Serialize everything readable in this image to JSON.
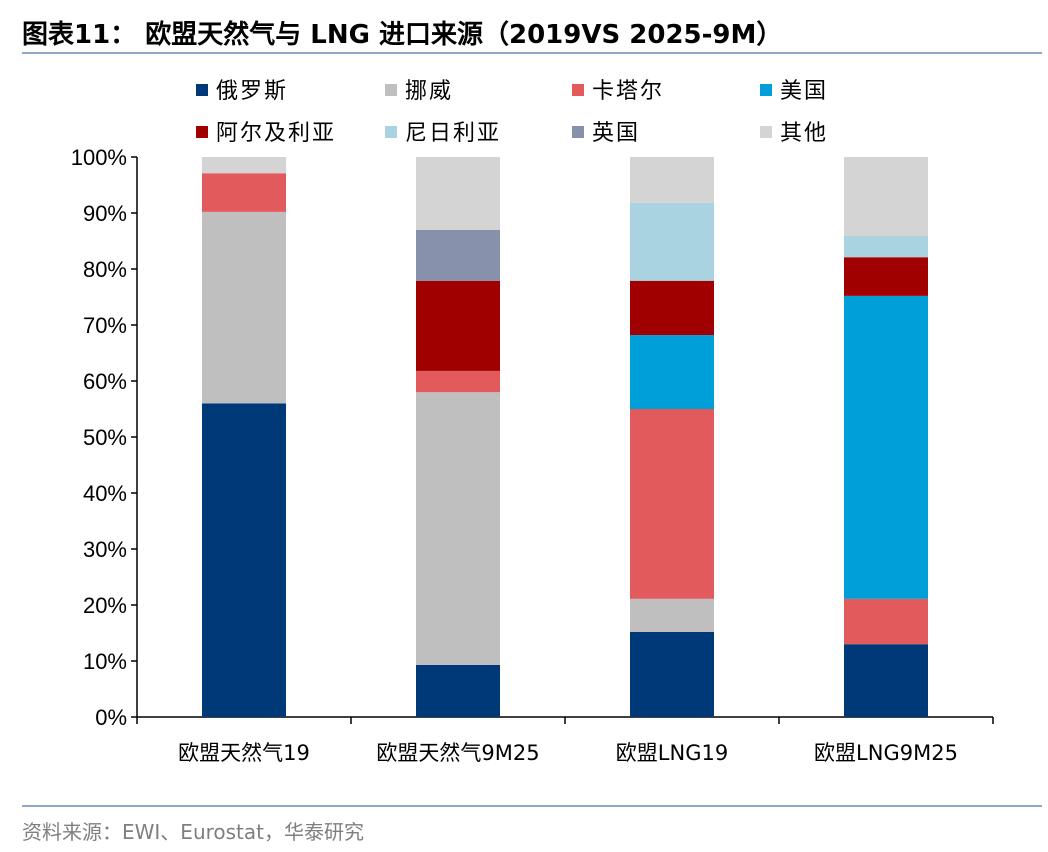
{
  "title": "图表11：  欧盟天然气与 LNG 进口来源（2019VS 2025-9M）",
  "source": "资料来源：EWI、Eurostat，华泰研究",
  "chart_data": {
    "type": "bar",
    "stacked": true,
    "categories": [
      "欧盟天然气19",
      "欧盟天然气9M25",
      "欧盟LNG19",
      "欧盟LNG9M25"
    ],
    "ylim": [
      0,
      100
    ],
    "yticks": [
      "0%",
      "10%",
      "20%",
      "30%",
      "40%",
      "50%",
      "60%",
      "70%",
      "80%",
      "90%",
      "100%"
    ],
    "legend_position": "top",
    "series": [
      {
        "name": "俄罗斯",
        "color": "#003978",
        "values": [
          56,
          9.3,
          15.2,
          13.0
        ]
      },
      {
        "name": "挪威",
        "color": "#BFBFBF",
        "values": [
          34.2,
          48.7,
          5.9,
          0
        ]
      },
      {
        "name": "卡塔尔",
        "color": "#E25A5B",
        "values": [
          6.9,
          3.8,
          33.9,
          8.1
        ]
      },
      {
        "name": "美国",
        "color": "#009FD9",
        "values": [
          0,
          0,
          13.2,
          54.1
        ]
      },
      {
        "name": "阿尔及利亚",
        "color": "#A00000",
        "values": [
          0,
          16.1,
          9.7,
          6.9
        ]
      },
      {
        "name": "尼日利亚",
        "color": "#A9D3E1",
        "values": [
          0,
          0,
          13.9,
          3.8
        ]
      },
      {
        "name": "英国",
        "color": "#8791AC",
        "values": [
          0,
          9.1,
          0,
          0
        ]
      },
      {
        "name": "其他",
        "color": "#D4D4D4",
        "values": [
          2.9,
          13.0,
          8.2,
          14.1
        ]
      }
    ]
  }
}
